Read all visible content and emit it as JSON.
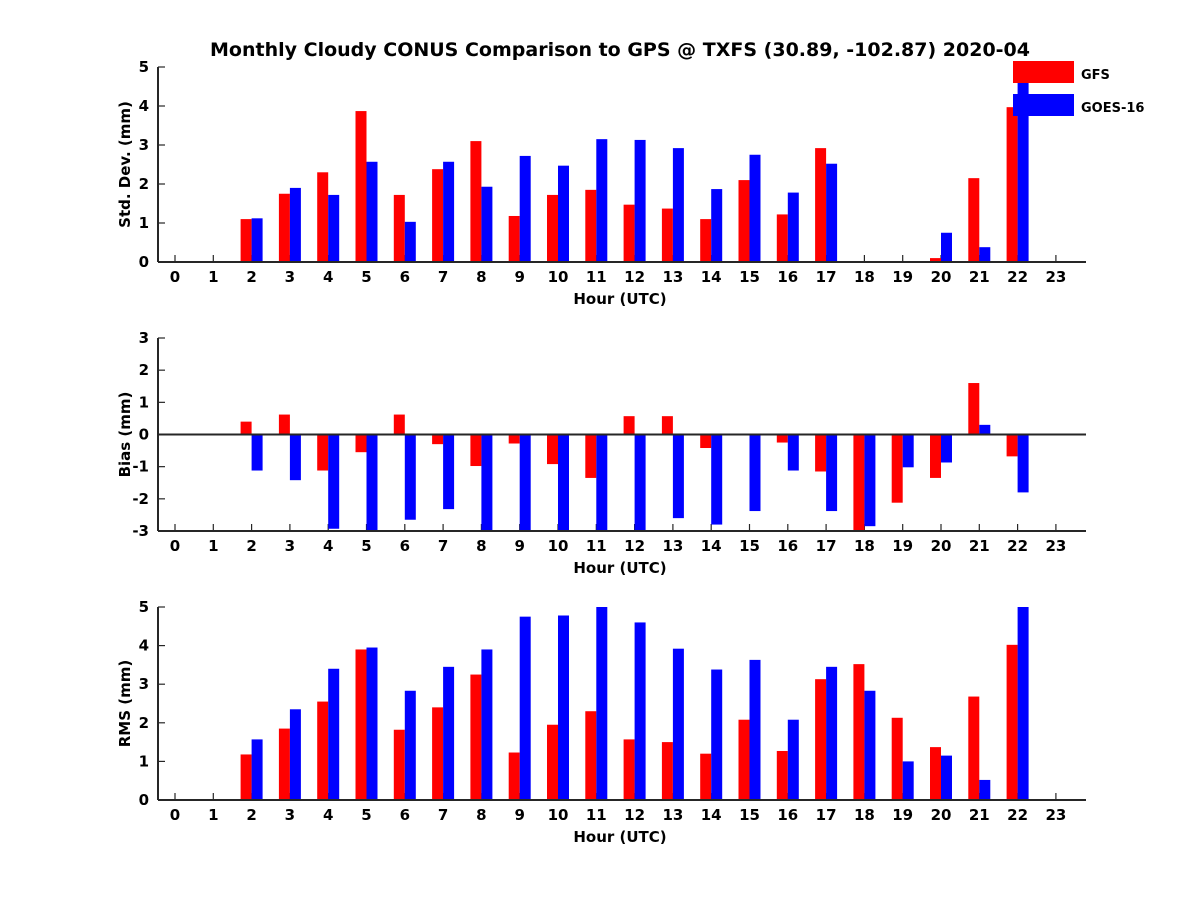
{
  "chart_data": {
    "title": "Monthly Cloudy CONUS Comparison to GPS @ TXFS (30.89, -102.87) 2020-04",
    "legend": {
      "placement": "top-right",
      "entries": [
        {
          "name": "GFS",
          "color": "#ff0000"
        },
        {
          "name": "GOES-16",
          "color": "#0000ff"
        }
      ]
    },
    "panels": [
      {
        "type": "bar",
        "xlabel": "Hour (UTC)",
        "ylabel": "Std. Dev. (mm)",
        "ylim": [
          0,
          5
        ],
        "yticks": [
          "0",
          "1",
          "2",
          "3",
          "4",
          "5"
        ],
        "categories": [
          "0",
          "1",
          "2",
          "3",
          "4",
          "5",
          "6",
          "7",
          "8",
          "9",
          "10",
          "11",
          "12",
          "13",
          "14",
          "15",
          "16",
          "17",
          "18",
          "19",
          "20",
          "21",
          "22",
          "23"
        ],
        "series": [
          {
            "name": "GFS",
            "color": "#ff0000",
            "values": [
              null,
              null,
              1.1,
              1.75,
              2.3,
              3.87,
              1.72,
              2.38,
              3.1,
              1.18,
              1.72,
              1.85,
              1.47,
              1.37,
              1.1,
              2.1,
              1.22,
              2.92,
              null,
              null,
              0.1,
              2.15,
              3.97,
              null
            ]
          },
          {
            "name": "GOES-16",
            "color": "#0000ff",
            "values": [
              null,
              null,
              1.12,
              1.9,
              1.72,
              2.57,
              1.03,
              2.57,
              1.93,
              2.72,
              2.47,
              3.15,
              3.13,
              2.92,
              1.87,
              2.75,
              1.78,
              2.52,
              null,
              null,
              0.75,
              0.38,
              4.75,
              null
            ]
          }
        ]
      },
      {
        "type": "bar",
        "xlabel": "Hour (UTC)",
        "ylabel": "Bias (mm)",
        "ylim": [
          -3,
          3
        ],
        "yticks": [
          "-3",
          "-2",
          "-1",
          "0",
          "1",
          "2",
          "3"
        ],
        "categories": [
          "0",
          "1",
          "2",
          "3",
          "4",
          "5",
          "6",
          "7",
          "8",
          "9",
          "10",
          "11",
          "12",
          "13",
          "14",
          "15",
          "16",
          "17",
          "18",
          "19",
          "20",
          "21",
          "22",
          "23"
        ],
        "series": [
          {
            "name": "GFS",
            "color": "#ff0000",
            "values": [
              null,
              null,
              0.4,
              0.62,
              -1.12,
              -0.55,
              0.62,
              -0.3,
              -0.98,
              -0.28,
              -0.92,
              -1.35,
              0.57,
              0.57,
              -0.42,
              0.02,
              -0.25,
              -1.15,
              -3.0,
              -2.12,
              -1.35,
              1.6,
              -0.68,
              null
            ]
          },
          {
            "name": "GOES-16",
            "color": "#0000ff",
            "values": [
              null,
              null,
              -1.12,
              -1.42,
              -2.93,
              -3.0,
              -2.65,
              -2.32,
              -3.0,
              -3.0,
              -3.0,
              -3.0,
              -3.0,
              -2.6,
              -2.8,
              -2.38,
              -1.12,
              -2.38,
              -2.85,
              -1.02,
              -0.87,
              0.3,
              -1.8,
              null
            ]
          }
        ]
      },
      {
        "type": "bar",
        "xlabel": "Hour (UTC)",
        "ylabel": "RMS (mm)",
        "ylim": [
          0,
          5
        ],
        "yticks": [
          "0",
          "1",
          "2",
          "3",
          "4",
          "5"
        ],
        "categories": [
          "0",
          "1",
          "2",
          "3",
          "4",
          "5",
          "6",
          "7",
          "8",
          "9",
          "10",
          "11",
          "12",
          "13",
          "14",
          "15",
          "16",
          "17",
          "18",
          "19",
          "20",
          "21",
          "22",
          "23"
        ],
        "series": [
          {
            "name": "GFS",
            "color": "#ff0000",
            "values": [
              null,
              null,
              1.18,
              1.85,
              2.55,
              3.9,
              1.82,
              2.4,
              3.25,
              1.23,
              1.95,
              2.3,
              1.57,
              1.5,
              1.2,
              2.08,
              1.27,
              3.13,
              3.52,
              2.13,
              1.37,
              2.68,
              4.02,
              null
            ]
          },
          {
            "name": "GOES-16",
            "color": "#0000ff",
            "values": [
              null,
              null,
              1.57,
              2.35,
              3.4,
              3.95,
              2.83,
              3.45,
              3.9,
              4.75,
              4.78,
              5.0,
              4.6,
              3.92,
              3.38,
              3.63,
              2.08,
              3.45,
              2.83,
              1.0,
              1.15,
              0.52,
              5.0,
              null
            ]
          }
        ]
      }
    ]
  }
}
